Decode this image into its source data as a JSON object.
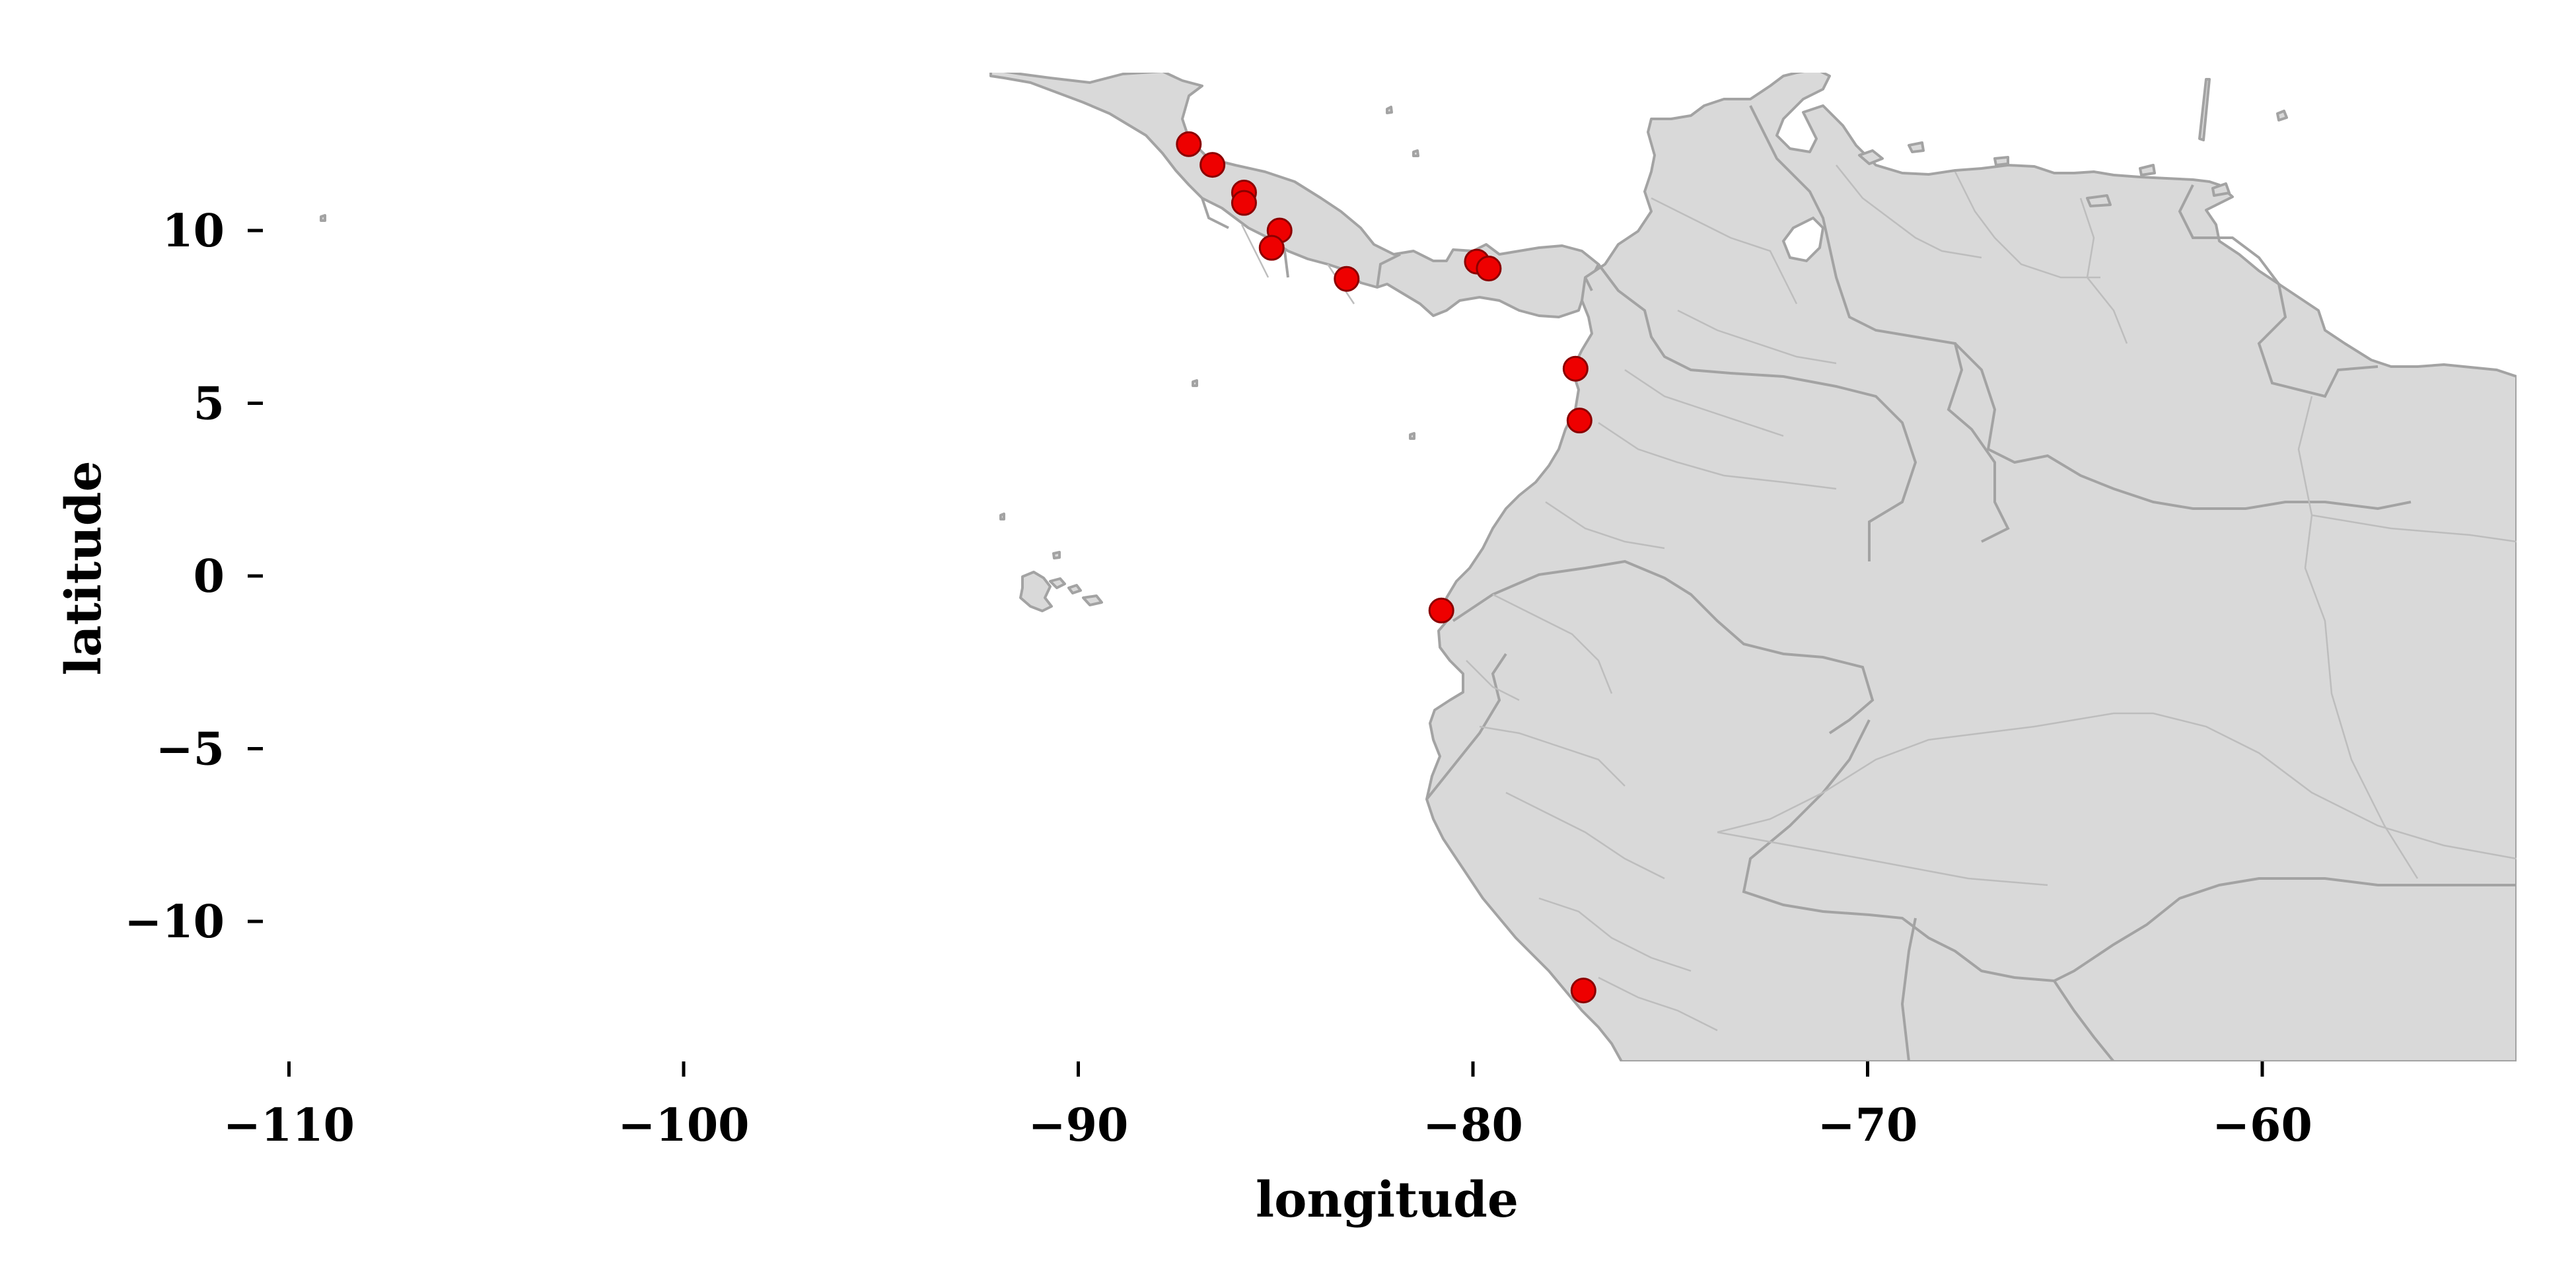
{
  "chart_data": {
    "type": "scatter",
    "title": "",
    "xlabel": "longitude",
    "ylabel": "latitude",
    "xlim": [
      -111,
      -54.5
    ],
    "ylim": [
      -14,
      14.5
    ],
    "x_ticks": [
      {
        "value": -110,
        "label": "−110"
      },
      {
        "value": -100,
        "label": "−100"
      },
      {
        "value": -90,
        "label": "−90"
      },
      {
        "value": -80,
        "label": "−80"
      },
      {
        "value": -70,
        "label": "−70"
      },
      {
        "value": -60,
        "label": "−60"
      }
    ],
    "y_ticks": [
      {
        "value": 10,
        "label": "10"
      },
      {
        "value": 5,
        "label": "5"
      },
      {
        "value": 0,
        "label": "0"
      },
      {
        "value": -5,
        "label": "−5"
      },
      {
        "value": -10,
        "label": "−10"
      }
    ],
    "grid": false,
    "legend": "none",
    "basemap": "Central and South America country and province boundaries",
    "colors": {
      "land": "#d9d9d9",
      "border": "#a3a3a3",
      "marker": "#ee0000",
      "marker_edge": "#8b0000"
    },
    "points": [
      {
        "lon": -87.2,
        "lat": 12.5
      },
      {
        "lon": -86.6,
        "lat": 11.9
      },
      {
        "lon": -85.8,
        "lat": 11.1
      },
      {
        "lon": -85.8,
        "lat": 10.8
      },
      {
        "lon": -84.9,
        "lat": 10.0
      },
      {
        "lon": -85.1,
        "lat": 9.5
      },
      {
        "lon": -83.2,
        "lat": 8.6
      },
      {
        "lon": -79.9,
        "lat": 9.1
      },
      {
        "lon": -79.6,
        "lat": 8.9
      },
      {
        "lon": -77.4,
        "lat": 6.0
      },
      {
        "lon": -77.3,
        "lat": 4.5
      },
      {
        "lon": -80.8,
        "lat": -1.0
      },
      {
        "lon": -77.2,
        "lat": -12.0
      }
    ]
  }
}
